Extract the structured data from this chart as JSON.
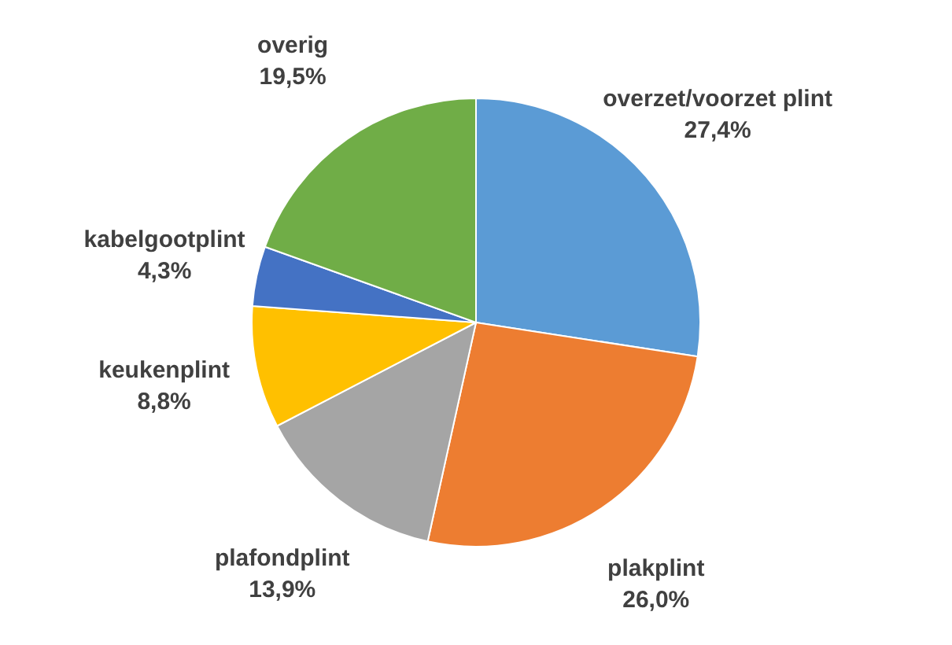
{
  "chart_data": {
    "type": "pie",
    "categories": [
      "overzet/voorzet plint",
      "plakplint",
      "plafondplint",
      "keukenplint",
      "kabelgootplint",
      "overig"
    ],
    "values": [
      27.4,
      26.0,
      13.9,
      8.8,
      4.3,
      19.5
    ],
    "value_labels": [
      "27,4%",
      "26,0%",
      "13,9%",
      "8,8%",
      "4,3%",
      "19,5%"
    ],
    "colors": [
      "#5b9bd5",
      "#ed7d31",
      "#a5a5a5",
      "#ffc000",
      "#4472c4",
      "#70ad47"
    ],
    "legend": false
  }
}
